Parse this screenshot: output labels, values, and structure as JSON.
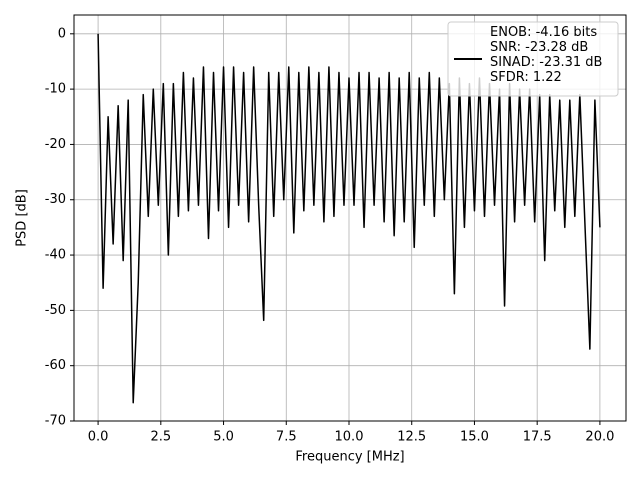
{
  "chart_data": {
    "type": "line",
    "xlabel": "Frequency [MHz]",
    "ylabel": "PSD [dB]",
    "xlim": [
      -0.96,
      21.04
    ],
    "ylim": [
      -70,
      3.4
    ],
    "xticks": [
      {
        "value": 0,
        "label": "0.0"
      },
      {
        "value": 2.5,
        "label": "2.5"
      },
      {
        "value": 5,
        "label": "5.0"
      },
      {
        "value": 7.5,
        "label": "7.5"
      },
      {
        "value": 10,
        "label": "10.0"
      },
      {
        "value": 12.5,
        "label": "12.5"
      },
      {
        "value": 15,
        "label": "15.0"
      },
      {
        "value": 17.5,
        "label": "17.5"
      },
      {
        "value": 20,
        "label": "20.0"
      }
    ],
    "yticks": [
      0,
      -10,
      -20,
      -30,
      -40,
      -50,
      -60,
      -70
    ],
    "grid": true,
    "legend": "upper right",
    "x": [
      0,
      0.2,
      0.4,
      0.6,
      0.8,
      1,
      1.2,
      1.4,
      1.6,
      1.8,
      2,
      2.2,
      2.4,
      2.6,
      2.8,
      3,
      3.2,
      3.4,
      3.6,
      3.8,
      4,
      4.2,
      4.4,
      4.6,
      4.8,
      5,
      5.2,
      5.4,
      5.6,
      5.8,
      6,
      6.2,
      6.4,
      6.6,
      6.8,
      7,
      7.2,
      7.4,
      7.6,
      7.8,
      8,
      8.2,
      8.4,
      8.6,
      8.8,
      9,
      9.2,
      9.4,
      9.6,
      9.8,
      10,
      10.2,
      10.4,
      10.6,
      10.8,
      11,
      11.2,
      11.4,
      11.6,
      11.8,
      12,
      12.2,
      12.4,
      12.6,
      12.8,
      13,
      13.2,
      13.4,
      13.6,
      13.8,
      14,
      14.2,
      14.4,
      14.6,
      14.8,
      15,
      15.2,
      15.4,
      15.6,
      15.8,
      16,
      16.2,
      16.4,
      16.6,
      16.8,
      17,
      17.2,
      17.4,
      17.6,
      17.8,
      18,
      18.2,
      18.4,
      18.6,
      18.8,
      19,
      19.2,
      19.4,
      19.6,
      19.8,
      20
    ],
    "series": [
      {
        "name": "ENOB: -4.16 bits\nSNR: -23.28 dB\nSINAD: -23.31 dB\nSFDR: 1.22",
        "color": "#000000",
        "values": [
          0,
          -46,
          -15,
          -38,
          -13,
          -41,
          -12,
          -66.7,
          -45,
          -11,
          -33,
          -10,
          -31,
          -9,
          -40,
          -9,
          -33,
          -7,
          -32,
          -8,
          -31,
          -6,
          -37,
          -7,
          -32,
          -6,
          -35,
          -6,
          -31,
          -7,
          -34,
          -6,
          -31,
          -51.8,
          -7,
          -33,
          -7,
          -30,
          -6,
          -36,
          -7,
          -32,
          -6,
          -31,
          -7,
          -34,
          -6,
          -33,
          -7,
          -31,
          -8,
          -31,
          -7,
          -35,
          -7,
          -31,
          -8,
          -34,
          -7,
          -36.5,
          -8,
          -34,
          -7,
          -38.6,
          -8,
          -31,
          -7,
          -33,
          -8,
          -30,
          -9,
          -47,
          -8,
          -35,
          -9,
          -32,
          -8,
          -33,
          -9,
          -31,
          -10,
          -49.2,
          -9,
          -34,
          -10,
          -31,
          -10,
          -34,
          -11,
          -41,
          -11,
          -32,
          -12,
          -35,
          -12,
          -33,
          -11,
          -34,
          -57,
          -12,
          -35
        ]
      }
    ]
  }
}
